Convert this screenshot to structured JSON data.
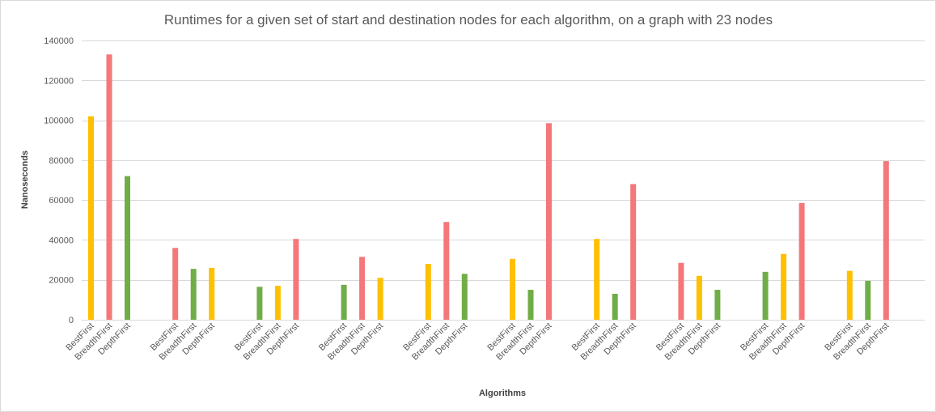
{
  "chart_data": {
    "type": "bar",
    "title": "Runtimes for a given set of start and destination nodes for each algorithm, on a graph with 23 nodes",
    "xlabel": "Algorithms",
    "ylabel": "Nanoseconds",
    "ylim": [
      0,
      140000
    ],
    "yticks": [
      0,
      20000,
      40000,
      60000,
      80000,
      100000,
      120000,
      140000
    ],
    "grid": true,
    "legend": "none",
    "colors": {
      "best": "#ffc000",
      "median": "#70ad47",
      "worst": "#f4777a"
    },
    "groups": [
      {
        "bars": [
          {
            "label": "BestFirst",
            "value": 102000,
            "color": "#ffc000"
          },
          {
            "label": "BreadthFirst",
            "value": 133000,
            "color": "#f4777a"
          },
          {
            "label": "DepthFirst",
            "value": 72000,
            "color": "#70ad47"
          }
        ]
      },
      {
        "bars": [
          {
            "label": "BestFirst",
            "value": 36000,
            "color": "#f4777a"
          },
          {
            "label": "BreadthFirst",
            "value": 25500,
            "color": "#70ad47"
          },
          {
            "label": "DepthFirst",
            "value": 26000,
            "color": "#ffc000"
          }
        ]
      },
      {
        "bars": [
          {
            "label": "BestFirst",
            "value": 16500,
            "color": "#70ad47"
          },
          {
            "label": "BreadthFirst",
            "value": 17000,
            "color": "#ffc000"
          },
          {
            "label": "DepthFirst",
            "value": 40500,
            "color": "#f4777a"
          }
        ]
      },
      {
        "bars": [
          {
            "label": "BestFirst",
            "value": 17500,
            "color": "#70ad47"
          },
          {
            "label": "BreadthFirst",
            "value": 31500,
            "color": "#f4777a"
          },
          {
            "label": "DepthFirst",
            "value": 21000,
            "color": "#ffc000"
          }
        ]
      },
      {
        "bars": [
          {
            "label": "BestFirst",
            "value": 28000,
            "color": "#ffc000"
          },
          {
            "label": "BreadthFirst",
            "value": 49000,
            "color": "#f4777a"
          },
          {
            "label": "DepthFirst",
            "value": 23000,
            "color": "#70ad47"
          }
        ]
      },
      {
        "bars": [
          {
            "label": "BestFirst",
            "value": 30500,
            "color": "#ffc000"
          },
          {
            "label": "BreadthFirst",
            "value": 15000,
            "color": "#70ad47"
          },
          {
            "label": "DepthFirst",
            "value": 98500,
            "color": "#f4777a"
          }
        ]
      },
      {
        "bars": [
          {
            "label": "BestFirst",
            "value": 40500,
            "color": "#ffc000"
          },
          {
            "label": "BreadthFirst",
            "value": 13000,
            "color": "#70ad47"
          },
          {
            "label": "DepthFirst",
            "value": 68000,
            "color": "#f4777a"
          }
        ]
      },
      {
        "bars": [
          {
            "label": "BestFirst",
            "value": 28500,
            "color": "#f4777a"
          },
          {
            "label": "BreadthFirst",
            "value": 22000,
            "color": "#ffc000"
          },
          {
            "label": "DepthFirst",
            "value": 15000,
            "color": "#70ad47"
          }
        ]
      },
      {
        "bars": [
          {
            "label": "BestFirst",
            "value": 24000,
            "color": "#70ad47"
          },
          {
            "label": "BreadthFirst",
            "value": 33000,
            "color": "#ffc000"
          },
          {
            "label": "DepthFirst",
            "value": 58500,
            "color": "#f4777a"
          }
        ]
      },
      {
        "bars": [
          {
            "label": "BestFirst",
            "value": 24500,
            "color": "#ffc000"
          },
          {
            "label": "BreadthFirst",
            "value": 19500,
            "color": "#70ad47"
          },
          {
            "label": "DepthFirst",
            "value": 79500,
            "color": "#f4777a"
          }
        ]
      }
    ]
  }
}
